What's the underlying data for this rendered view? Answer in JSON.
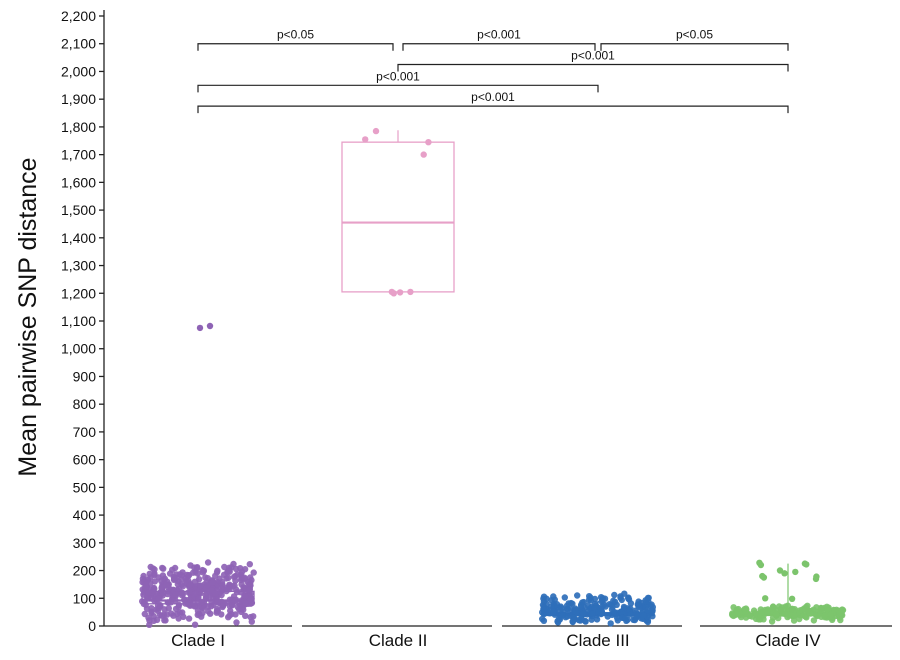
{
  "chart_data": {
    "type": "box",
    "ylabel": "Mean pairwise SNP distance",
    "xlabel": "",
    "ylim": [
      0,
      2200
    ],
    "yticks": [
      0,
      100,
      200,
      300,
      400,
      500,
      600,
      700,
      800,
      900,
      1000,
      1100,
      1200,
      1300,
      1400,
      1500,
      1600,
      1700,
      1800,
      1900,
      2000,
      2100,
      2200
    ],
    "ytick_labels": [
      "0",
      "100",
      "200",
      "300",
      "400",
      "500",
      "600",
      "700",
      "800",
      "900",
      "1,000",
      "1,100",
      "1,200",
      "1,300",
      "1,400",
      "1,500",
      "1,600",
      "1,700",
      "1,800",
      "1,900",
      "2,000",
      "2,100",
      "2,200"
    ],
    "categories": [
      "Clade I",
      "Clade II",
      "Clade III",
      "Clade IV"
    ],
    "series": [
      {
        "category": "Clade I",
        "color": "#8e63b5",
        "box": {
          "q1": 80,
          "median": 92,
          "q3": 125,
          "whisker_low": 60,
          "whisker_high": 185
        },
        "outliers": [
          1075,
          1082
        ],
        "point_cloud": {
          "min": 55,
          "max": 185,
          "count": 420
        }
      },
      {
        "category": "Clade II",
        "color": "#e7a0c8",
        "box": {
          "q1": 1205,
          "median": 1455,
          "q3": 1745,
          "whisker_low": 1200,
          "whisker_high": 1788
        },
        "points": [
          1785,
          1755,
          1745,
          1700,
          1205,
          1203,
          1205,
          1200
        ]
      },
      {
        "category": "Clade III",
        "color": "#2f6fba",
        "box": {
          "q1": 38,
          "median": 43,
          "q3": 48,
          "whisker_low": 25,
          "whisker_high": 90
        },
        "point_cloud": {
          "min": 25,
          "max": 92,
          "count": 220
        }
      },
      {
        "category": "Clade IV",
        "color": "#7cc46c",
        "box": {
          "q1": 38,
          "median": 43,
          "q3": 50,
          "whisker_low": 25,
          "whisker_high": 225
        },
        "points": [
          228,
          225,
          222,
          220,
          200,
          195,
          190,
          180,
          178,
          175,
          170,
          100,
          98,
          70,
          65,
          60,
          58,
          55
        ],
        "point_cloud": {
          "min": 28,
          "max": 62,
          "count": 180
        }
      }
    ],
    "comparisons": [
      {
        "from": "Clade I",
        "to": "Clade II",
        "label": "p<0.05",
        "y": 2100
      },
      {
        "from": "Clade II",
        "to": "Clade III",
        "label": "p<0.001",
        "y": 2100
      },
      {
        "from": "Clade III",
        "to": "Clade IV",
        "label": "p<0.05",
        "y": 2100
      },
      {
        "from": "Clade II",
        "to": "Clade IV",
        "label": "p<0.001",
        "y": 2025
      },
      {
        "from": "Clade I",
        "to": "Clade III",
        "label": "p<0.001",
        "y": 1950
      },
      {
        "from": "Clade I",
        "to": "Clade IV",
        "label": "p<0.001",
        "y": 1875
      }
    ],
    "grid": false,
    "legend": "none"
  }
}
